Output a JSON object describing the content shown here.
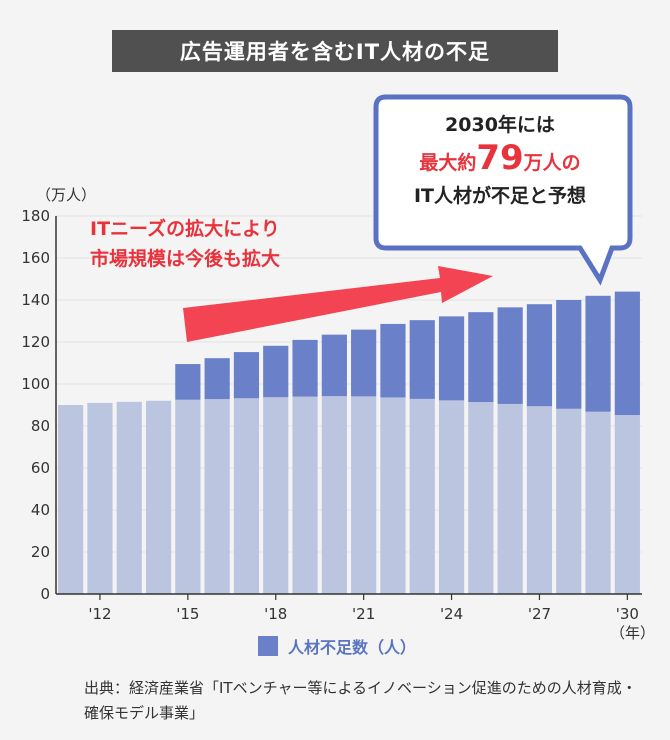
{
  "title": "広告運用者を含むIT人材の不足",
  "unit_label": "（万人）",
  "year_label": "（年）",
  "annotation": {
    "line1": "ITニーズの拡大により",
    "line2": "市場規模は今後も拡大"
  },
  "callout": {
    "line1": "2030年には",
    "prefix": "最大約",
    "number": "79",
    "suffix": "万人の",
    "line3": "IT人材が不足と予想"
  },
  "legend_label": "人材不足数（人）",
  "source": "出典：経済産業省「ITベンチャー等によるイノベーション促進のための人材育成・確保モデル事業」",
  "colors": {
    "base": "#bcc5df",
    "shortage": "#6a80c9",
    "arrow": "#f24452",
    "bubble_border": "#5a72c4"
  },
  "chart_data": {
    "type": "bar",
    "stacked": true,
    "categories": [
      "2011",
      "2012",
      "2013",
      "2014",
      "2015",
      "2016",
      "2017",
      "2018",
      "2019",
      "2020",
      "2021",
      "2022",
      "2023",
      "2024",
      "2025",
      "2026",
      "2027",
      "2028",
      "2029",
      "2030"
    ],
    "x_tick_labels": [
      {
        "index": 1,
        "label": "'12"
      },
      {
        "index": 4,
        "label": "'15"
      },
      {
        "index": 7,
        "label": "'18"
      },
      {
        "index": 10,
        "label": "'21"
      },
      {
        "index": 13,
        "label": "'24"
      },
      {
        "index": 16,
        "label": "'27"
      },
      {
        "index": 19,
        "label": "'30"
      }
    ],
    "ylim": [
      0,
      180
    ],
    "yticks": [
      0,
      20,
      40,
      60,
      80,
      100,
      120,
      140,
      160,
      180
    ],
    "series": [
      {
        "values": [
          90,
          91,
          91.5,
          92,
          92.5,
          92.8,
          93.2,
          93.7,
          94,
          94.2,
          94.1,
          93.6,
          92.9,
          92.2,
          91.4,
          90.5,
          89.4,
          88.2,
          86.8,
          85.2
        ]
      },
      {
        "name": "人材不足数（人）",
        "values": [
          0,
          0,
          0,
          0,
          17,
          19.5,
          22,
          24.5,
          27,
          29.3,
          31.8,
          35,
          37.5,
          40,
          42.8,
          46,
          48.6,
          51.8,
          55.2,
          58.8
        ]
      }
    ]
  }
}
